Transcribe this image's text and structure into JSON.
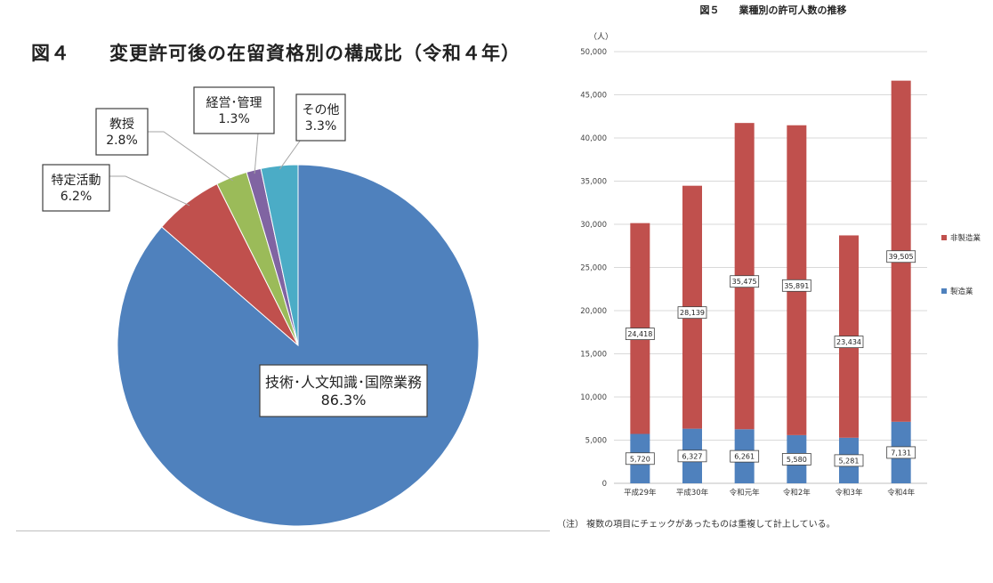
{
  "chart_data": [
    {
      "type": "pie",
      "title": "図４　　変更許可後の在留資格別の構成比（令和４年）",
      "unit": "%",
      "slices": [
        {
          "label": "技術･人文知識･国際業務",
          "value": 86.3,
          "display": "86.3%",
          "color": "#4f81bd"
        },
        {
          "label": "特定活動",
          "value": 6.2,
          "display": "6.2%",
          "color": "#c0504d"
        },
        {
          "label": "教授",
          "value": 2.8,
          "display": "2.8%",
          "color": "#9bbb59"
        },
        {
          "label": "経営･管理",
          "value": 1.3,
          "display": "1.3%",
          "color": "#8064a2"
        },
        {
          "label": "その他",
          "value": 3.3,
          "display": "3.3%",
          "color": "#4bacc6"
        }
      ]
    },
    {
      "type": "bar",
      "stacked": true,
      "title": "図５　　業種別の許可人数の推移",
      "ylabel": "（人）",
      "categories": [
        "平成29年",
        "平成30年",
        "令和元年",
        "令和2年",
        "令和3年",
        "令和4年"
      ],
      "series": [
        {
          "name": "製造業",
          "color": "#4f81bd",
          "values": [
            5720,
            6327,
            6261,
            5580,
            5281,
            7131
          ],
          "labels": [
            "5,720",
            "6,327",
            "6,261",
            "5,580",
            "5,281",
            "7,131"
          ]
        },
        {
          "name": "非製造業",
          "color": "#c0504d",
          "values": [
            24418,
            28139,
            35475,
            35891,
            23434,
            39505
          ],
          "labels": [
            "24,418",
            "28,139",
            "35,475",
            "35,891",
            "23,434",
            "39,505"
          ]
        }
      ],
      "ylim": [
        0,
        50000
      ],
      "yticks": [
        0,
        5000,
        10000,
        15000,
        20000,
        25000,
        30000,
        35000,
        40000,
        45000,
        50000
      ],
      "ytick_labels": [
        "0",
        "5,000",
        "10,000",
        "15,000",
        "20,000",
        "25,000",
        "30,000",
        "35,000",
        "40,000",
        "45,000",
        "50,000"
      ],
      "grid": true,
      "legend_position": "right",
      "legend": [
        "非製造業",
        "製造業"
      ],
      "note": "（注） 複数の項目にチェックがあったものは重複して計上している。"
    }
  ]
}
